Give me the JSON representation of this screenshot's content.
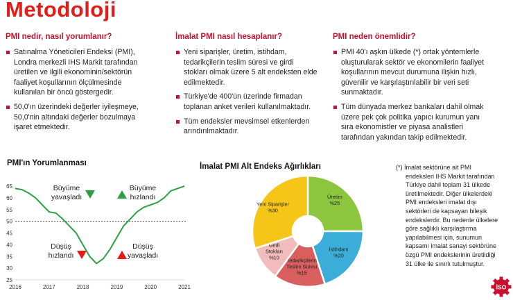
{
  "page": {
    "title": "Metodoloji"
  },
  "columns": [
    {
      "heading": "PMI nedir, nasıl yorumlanır?",
      "bullets": [
        "Satınalma Yöneticileri Endeksi (PMI), Londra merkezli IHS Markit tarafından üretilen ve ilgili ekonominin/sektörün faaliyet koşullarının ölçülmesinde kullanılan bir öncü göstergedir.",
        "50,0'ın üzerindeki değerler iyileşmeye, 50,0'nin altındaki değerler bozulmaya işaret etmektedir."
      ]
    },
    {
      "heading": "İmalat PMI nasıl hesaplanır?",
      "bullets": [
        "Yeni siparişler, üretim, istihdam, tedarikçilerin teslim süresi ve girdi stokları olmak üzere 5 alt endeksten elde edilmektedir.",
        "Türkiye'de 400'ün üzerinde firmadan toplanan anket verileri kullanılmaktadır.",
        "Tüm endeksler mevsimsel etkenlerden arındırılmaktadır."
      ]
    },
    {
      "heading": "PMI neden önemlidir?",
      "bullets": [
        "PMI 40'ı aşkın ülkede (*) ortak yöntemlerle oluşturularak sektör ve ekonomilerin faaliyet koşullarının mevcut durumuna ilişkin hızlı, güvenilir ve karşılaştırılabilir bir veri seti sunmaktadır.",
        "Tüm dünyada merkez bankaları dahil olmak üzere pek çok politika yapıcı kurumun yanı sıra ekonomistler ve piyasa analistleri tarafından yakından takip edilmektedir."
      ]
    }
  ],
  "chart_data": [
    {
      "type": "line",
      "title": "PMI'ın Yorumlanması",
      "xlabel": "",
      "ylabel": "",
      "x_ticks": [
        "2016",
        "2017",
        "2018",
        "2019",
        "2020",
        "2021"
      ],
      "ylim": [
        25,
        65
      ],
      "y_ticks": [
        25,
        30,
        35,
        40,
        45,
        50,
        55,
        60,
        65
      ],
      "reference_line": 50,
      "grid": false,
      "x": [
        2016.0,
        2016.2,
        2016.4,
        2016.6,
        2016.8,
        2017.0,
        2017.2,
        2017.4,
        2017.6,
        2017.8,
        2018.0,
        2018.2,
        2018.4,
        2018.6,
        2018.8,
        2019.0,
        2019.2,
        2019.4,
        2019.6,
        2019.8,
        2020.0,
        2020.2,
        2020.4,
        2020.6,
        2020.8,
        2021.0
      ],
      "y": [
        64,
        63.5,
        62,
        60,
        57,
        54,
        53.5,
        51,
        48,
        45,
        40,
        35,
        32,
        34,
        38,
        43,
        48,
        51,
        54,
        56,
        57,
        58,
        60,
        63,
        64,
        65
      ],
      "annotations": [
        {
          "label": "Büyüme yavaşladı",
          "arrow": "down",
          "color": "#2e9e44"
        },
        {
          "label": "Büyüme hızlandı",
          "arrow": "up",
          "color": "#2e9e44"
        },
        {
          "label": "Düşüş hızlandı",
          "arrow": "down",
          "color": "#e41b17"
        },
        {
          "label": "Düşüş yavaşladı",
          "arrow": "up",
          "color": "#e41b17"
        }
      ]
    },
    {
      "type": "pie",
      "title": "İmalat PMI Alt Endeks Ağırlıkları",
      "series": [
        {
          "name": "Üretim",
          "value": 25,
          "label": "%25",
          "color": "#8cc63f"
        },
        {
          "name": "İstihdam",
          "value": 20,
          "label": "%20",
          "color": "#3aaed8"
        },
        {
          "name": "Tedarikçilerin Teslim Süresi",
          "value": 15,
          "label": "%15",
          "color": "#d95f5f"
        },
        {
          "name": "Girdi Stokları",
          "value": 10,
          "label": "%10",
          "color": "#f2bcbc"
        },
        {
          "name": "Yeni Siparişler",
          "value": 30,
          "label": "%30",
          "color": "#f5c518"
        }
      ]
    }
  ],
  "footnote": {
    "lines": [
      "(*) İmalat sektörüne ait PMI",
      "endeksleri IHS Markit tarafından",
      "Türkiye dahil toplam 31 ülkede",
      "üretilmektedir. Diğer ülkelerdeki",
      "PMI endeksleri imalat dışı",
      "sektörleri de kapsayan bileşik",
      "endekslerdir. Bu nedenle ülkelere",
      "göre sağlıklı karşılaştırma",
      "yapılabilmesi için, sunumun",
      "kapsamı imalat sanayi sektörüne",
      "özgü PMI endekslerinin üretildiği",
      "31 ülke ile sınırlı tutulmuştur."
    ]
  },
  "logo": {
    "text": "İSO",
    "color": "#c8102e"
  }
}
